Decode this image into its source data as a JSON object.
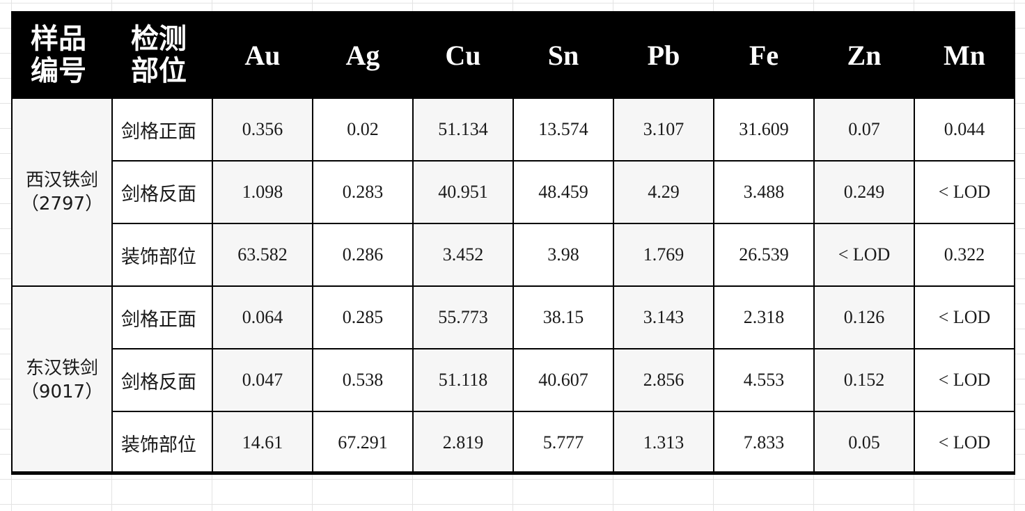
{
  "table": {
    "headers": {
      "sample_no": [
        "样品",
        "编号"
      ],
      "position": [
        "检测",
        "部位"
      ],
      "elements": [
        "Au",
        "Ag",
        "Cu",
        "Sn",
        "Pb",
        "Fe",
        "Zn",
        "Mn"
      ]
    },
    "groups": [
      {
        "name": "西汉铁剑",
        "id": "（2797）",
        "rows": [
          {
            "position": "剑格正面",
            "values": [
              "0.356",
              "0.02",
              "51.134",
              "13.574",
              "3.107",
              "31.609",
              "0.07",
              "0.044"
            ]
          },
          {
            "position": "剑格反面",
            "values": [
              "1.098",
              "0.283",
              "40.951",
              "48.459",
              "4.29",
              "3.488",
              "0.249",
              "< LOD"
            ]
          },
          {
            "position": "装饰部位",
            "values": [
              "63.582",
              "0.286",
              "3.452",
              "3.98",
              "1.769",
              "26.539",
              "< LOD",
              "0.322"
            ]
          }
        ]
      },
      {
        "name": "东汉铁剑",
        "id": "（9017）",
        "rows": [
          {
            "position": "剑格正面",
            "values": [
              "0.064",
              "0.285",
              "55.773",
              "38.15",
              "3.143",
              "2.318",
              "0.126",
              "< LOD"
            ]
          },
          {
            "position": "剑格反面",
            "values": [
              "0.047",
              "0.538",
              "51.118",
              "40.607",
              "2.856",
              "4.553",
              "0.152",
              "< LOD"
            ]
          },
          {
            "position": "装饰部位",
            "values": [
              "14.61",
              "67.291",
              "2.819",
              "5.777",
              "1.313",
              "7.833",
              "0.05",
              "< LOD"
            ]
          }
        ]
      }
    ]
  },
  "colors": {
    "header_bg": "#000000",
    "header_text": "#ffffff",
    "cell_alt": "#f6f6f6"
  }
}
